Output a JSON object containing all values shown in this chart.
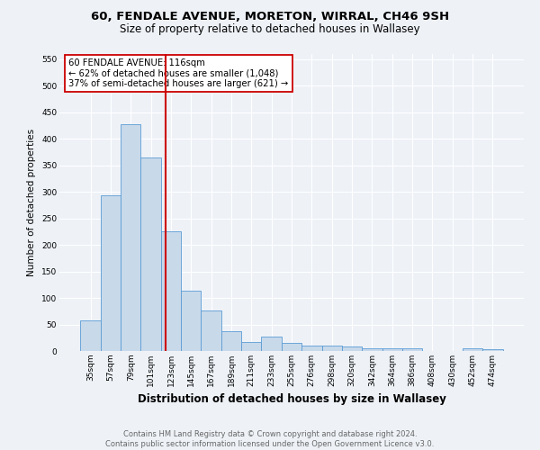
{
  "title_line1": "60, FENDALE AVENUE, MORETON, WIRRAL, CH46 9SH",
  "title_line2": "Size of property relative to detached houses in Wallasey",
  "xlabel": "Distribution of detached houses by size in Wallasey",
  "ylabel": "Number of detached properties",
  "categories": [
    "35sqm",
    "57sqm",
    "79sqm",
    "101sqm",
    "123sqm",
    "145sqm",
    "167sqm",
    "189sqm",
    "211sqm",
    "233sqm",
    "255sqm",
    "276sqm",
    "298sqm",
    "320sqm",
    "342sqm",
    "364sqm",
    "386sqm",
    "408sqm",
    "430sqm",
    "452sqm",
    "474sqm"
  ],
  "values": [
    57,
    293,
    428,
    365,
    226,
    113,
    77,
    38,
    17,
    27,
    16,
    10,
    10,
    8,
    5,
    5,
    5,
    0,
    0,
    5,
    3
  ],
  "bar_color": "#c8d9ea",
  "bar_edge_color": "#5b9bd5",
  "vline_color": "#cc0000",
  "vline_pos": 3.73,
  "annotation_text": "60 FENDALE AVENUE: 116sqm\n← 62% of detached houses are smaller (1,048)\n37% of semi-detached houses are larger (621) →",
  "ylim_max": 560,
  "yticks": [
    0,
    50,
    100,
    150,
    200,
    250,
    300,
    350,
    400,
    450,
    500,
    550
  ],
  "background_color": "#eef2f7",
  "grid_color": "#ffffff",
  "title_fontsize": 9.5,
  "subtitle_fontsize": 8.5,
  "xlabel_fontsize": 8.5,
  "ylabel_fontsize": 7.5,
  "tick_fontsize": 6.5,
  "annotation_fontsize": 7.2,
  "footer_fontsize": 6.0,
  "footer_color": "#666666",
  "footer_line1": "Contains HM Land Registry data © Crown copyright and database right 2024.",
  "footer_line2": "Contains public sector information licensed under the Open Government Licence v3.0."
}
